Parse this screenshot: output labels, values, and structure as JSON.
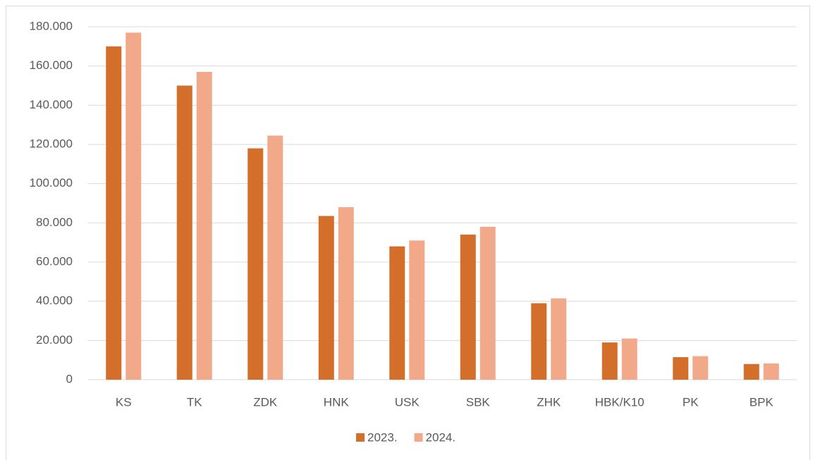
{
  "chart_data": {
    "type": "bar",
    "categories": [
      "KS",
      "TK",
      "ZDK",
      "HNK",
      "USK",
      "SBK",
      "ZHK",
      "HBK/K10",
      "PK",
      "BPK"
    ],
    "series": [
      {
        "name": "2023.",
        "color": "#d46e2b",
        "values": [
          170000,
          150000,
          118000,
          83500,
          68000,
          74000,
          39000,
          19000,
          11500,
          8000
        ]
      },
      {
        "name": "2024.",
        "color": "#f2a98a",
        "values": [
          177000,
          157000,
          124500,
          88000,
          71000,
          78000,
          41500,
          21000,
          12000,
          8300
        ]
      }
    ],
    "ylim": [
      0,
      180000
    ],
    "yticks": [
      0,
      {
        "value": 20000,
        "label": "20.000"
      },
      {
        "value": 40000,
        "label": "40.000"
      },
      {
        "value": 60000,
        "label": "60.000"
      },
      {
        "value": 80000,
        "label": "80.000"
      },
      {
        "value": 100000,
        "label": "100.000"
      },
      {
        "value": 120000,
        "label": "120.000"
      },
      {
        "value": 140000,
        "label": "140.000"
      },
      {
        "value": 160000,
        "label": "160.000"
      },
      {
        "value": 180000,
        "label": "180.000"
      }
    ],
    "grid": true,
    "legend": "bottom"
  }
}
